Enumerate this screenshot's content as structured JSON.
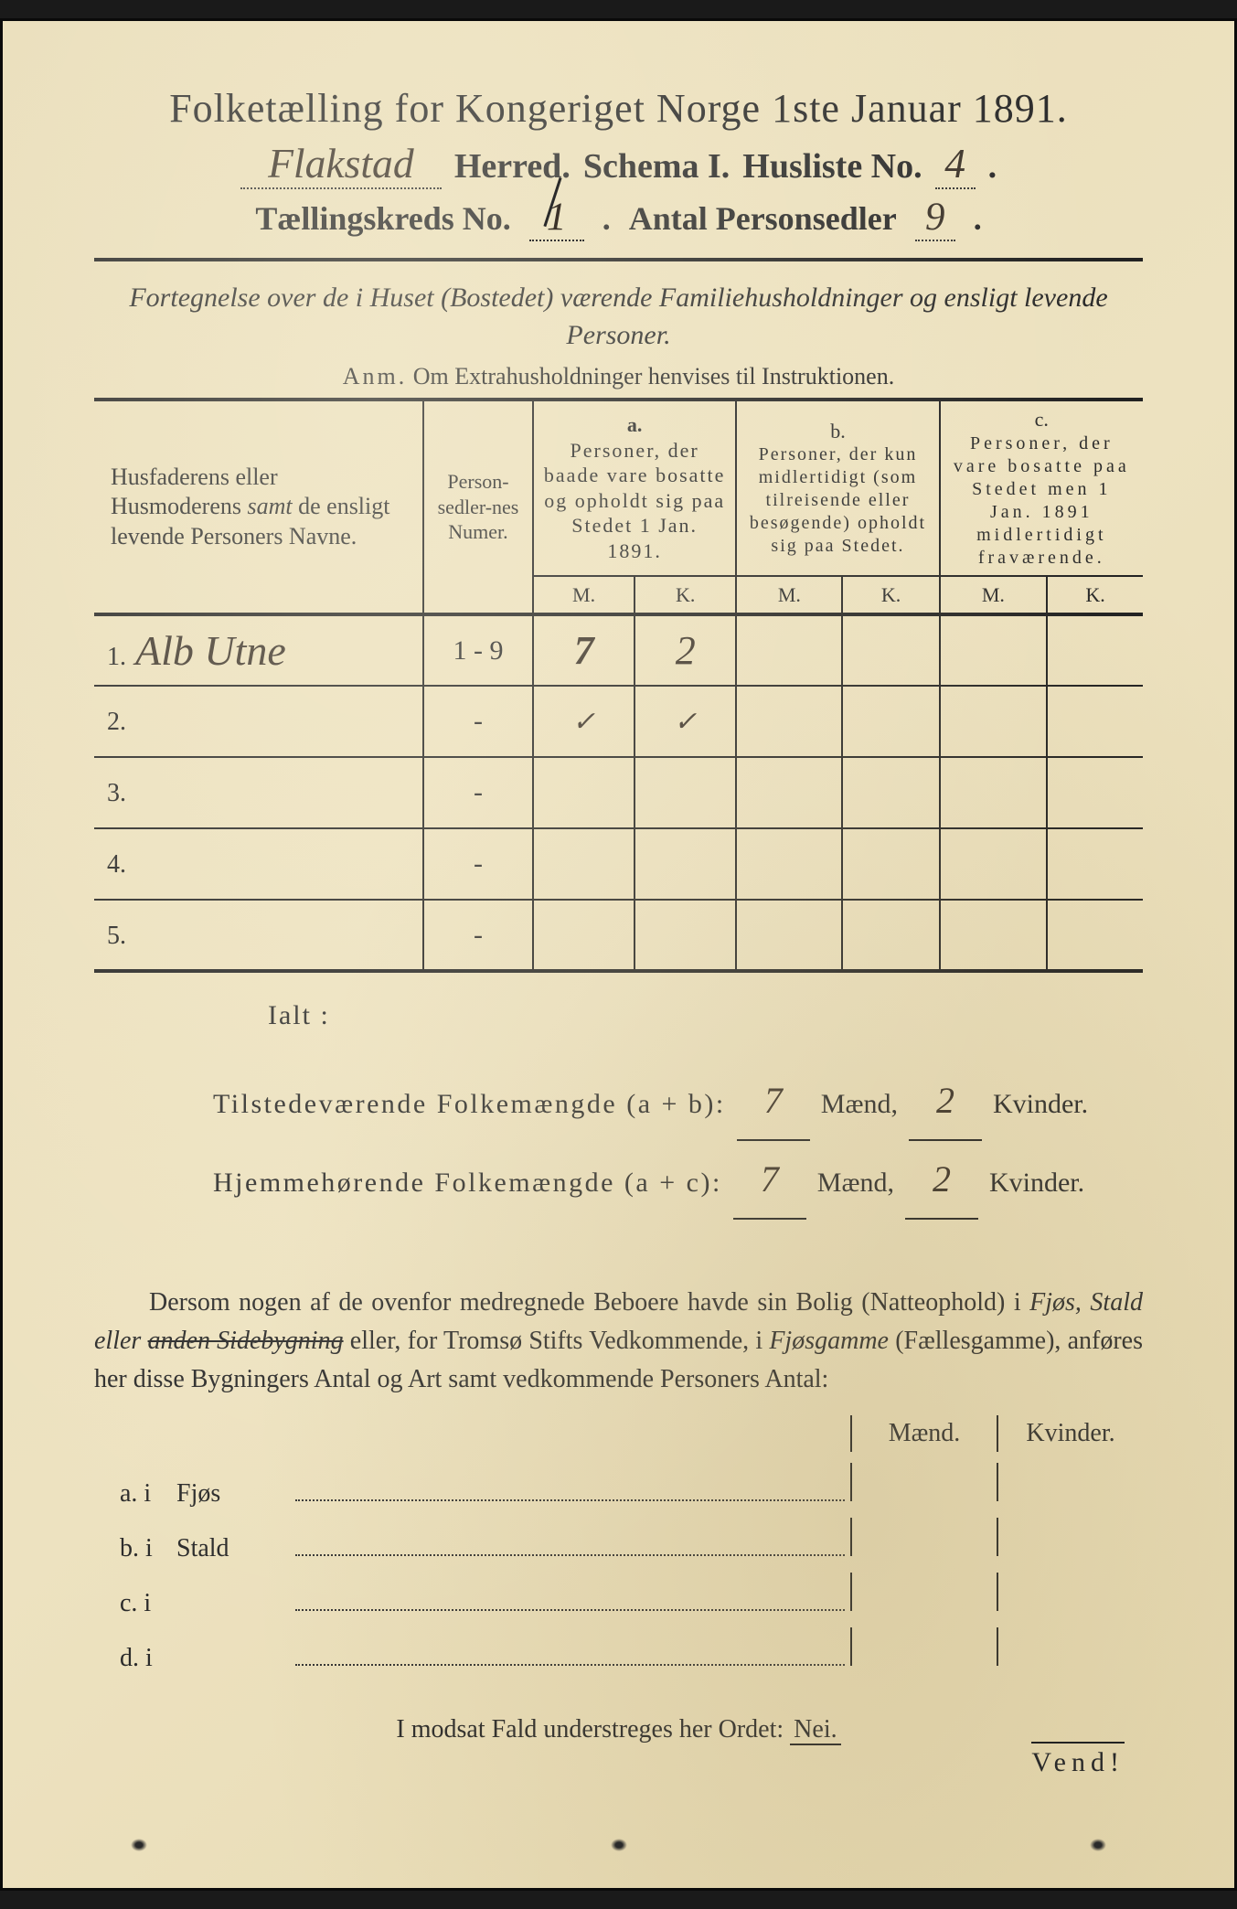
{
  "header": {
    "title": "Folketælling for Kongeriget Norge 1ste Januar 1891.",
    "herred_value": "Flakstad",
    "herred_label": "Herred.",
    "schema_label": "Schema I.",
    "husliste_label": "Husliste No.",
    "husliste_value": "4",
    "kreds_label": "Tællingskreds No.",
    "kreds_value": "1",
    "personsedler_label": "Antal Personsedler",
    "personsedler_value": "9"
  },
  "subtitle": {
    "line": "Fortegnelse over de i Huset (Bostedet) værende Familiehusholdninger og ensligt levende Personer.",
    "anm_lead": "Anm.",
    "anm_text": "Om Extrahusholdninger henvises til Instruktionen."
  },
  "table": {
    "col_names": "Husfaderens eller Husmoderens samt de ensligt levende Personers Navne.",
    "col_num": "Person-sedler-nes Numer.",
    "col_a_head": "a.",
    "col_a": "Personer, der baade vare bosatte og opholdt sig paa Stedet 1 Jan. 1891.",
    "col_b_head": "b.",
    "col_b": "Personer, der kun midlertidigt (som tilreisende eller besøgende) opholdt sig paa Stedet.",
    "col_c_head": "c.",
    "col_c": "Personer, der vare bosatte paa Stedet men 1 Jan. 1891 midlertidigt fraværende.",
    "M": "M.",
    "K": "K.",
    "rows": [
      {
        "n": "1.",
        "name": "Alb Utne",
        "num": "1 - 9",
        "aM": "7",
        "aK": "2",
        "bM": "",
        "bK": "",
        "cM": "",
        "cK": ""
      },
      {
        "n": "2.",
        "name": "",
        "num": "-",
        "aM": "✓",
        "aK": "✓",
        "bM": "",
        "bK": "",
        "cM": "",
        "cK": ""
      },
      {
        "n": "3.",
        "name": "",
        "num": "-",
        "aM": "",
        "aK": "",
        "bM": "",
        "bK": "",
        "cM": "",
        "cK": ""
      },
      {
        "n": "4.",
        "name": "",
        "num": "-",
        "aM": "",
        "aK": "",
        "bM": "",
        "bK": "",
        "cM": "",
        "cK": ""
      },
      {
        "n": "5.",
        "name": "",
        "num": "-",
        "aM": "",
        "aK": "",
        "bM": "",
        "bK": "",
        "cM": "",
        "cK": ""
      }
    ]
  },
  "totals": {
    "ialt": "Ialt :",
    "line1_label": "Tilstedeværende Folkemængde (a + b):",
    "line2_label": "Hjemmehørende Folkemængde (a + c):",
    "maend": "Mænd,",
    "kvinder": "Kvinder.",
    "l1M": "7",
    "l1K": "2",
    "l2M": "7",
    "l2K": "2"
  },
  "para": {
    "text1": "Dersom nogen af de ovenfor medregnede Beboere havde sin Bolig (Natteophold) i ",
    "ital1": "Fjøs, Stald eller ",
    "strike": "anden Sidebygning",
    "text2": " eller, for Tromsø Stifts Vedkommende, i ",
    "ital2": "Fjøsgamme",
    "text3": " (Fællesgamme), anføres her disse Bygningers Antal og Art samt vedkommende Personers Antal:"
  },
  "mk": {
    "maend": "Mænd.",
    "kvinder": "Kvinder."
  },
  "buildings": {
    "rows": [
      {
        "k": "a.  i",
        "name": "Fjøs"
      },
      {
        "k": "b.  i",
        "name": "Stald"
      },
      {
        "k": "c.  i",
        "name": ""
      },
      {
        "k": "d.  i",
        "name": ""
      }
    ]
  },
  "nei": {
    "text": "I modsat Fald understreges her Ordet: ",
    "word": "Nei."
  },
  "vend": "Vend!",
  "colors": {
    "paper": "#e8dcb8",
    "ink": "#2a2a2a",
    "handwriting": "#3a3128",
    "border": "#222222"
  }
}
